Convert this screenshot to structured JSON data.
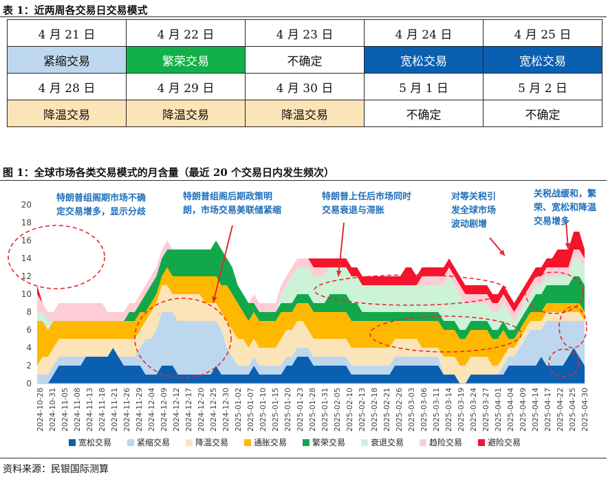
{
  "table": {
    "title": "表 1：近两周各交易日交易模式",
    "rows": [
      {
        "cells": [
          {
            "text": "4 月 21 日",
            "mode": "none"
          },
          {
            "text": "4 月 22 日",
            "mode": "none"
          },
          {
            "text": "4 月 23 日",
            "mode": "none"
          },
          {
            "text": "4 月 24 日",
            "mode": "none"
          },
          {
            "text": "4 月 25 日",
            "mode": "none"
          }
        ]
      },
      {
        "cells": [
          {
            "text": "紧缩交易",
            "mode": "tight"
          },
          {
            "text": "繁荣交易",
            "mode": "boom"
          },
          {
            "text": "不确定",
            "mode": "none"
          },
          {
            "text": "宽松交易",
            "mode": "loose"
          },
          {
            "text": "宽松交易",
            "mode": "loose"
          }
        ]
      },
      {
        "cells": [
          {
            "text": "4 月 28 日",
            "mode": "none"
          },
          {
            "text": "4 月 29 日",
            "mode": "none"
          },
          {
            "text": "4 月 30 日",
            "mode": "none"
          },
          {
            "text": "5 月 1 日",
            "mode": "none"
          },
          {
            "text": "5 月 2 日",
            "mode": "none"
          }
        ]
      },
      {
        "cells": [
          {
            "text": "降温交易",
            "mode": "cool"
          },
          {
            "text": "降温交易",
            "mode": "cool"
          },
          {
            "text": "降温交易",
            "mode": "cool"
          },
          {
            "text": "不确定",
            "mode": "none"
          },
          {
            "text": "不确定",
            "mode": "none"
          }
        ]
      }
    ]
  },
  "figure_title": "图 1：全球市场各类交易模式的月含量（最近 20 个交易日内发生频次）",
  "source": "资料来源：民银国际测算",
  "colors": {
    "宽松交易": "#0a5fb0",
    "紧缩交易": "#bdd7ee",
    "降温交易": "#fbe4b8",
    "通胀交易": "#ffb800",
    "繁荣交易": "#12a84a",
    "衰退交易": "#ccf2d8",
    "趋险交易": "#fccdd6",
    "避险交易": "#f4142c",
    "annotation": "#1f6fb8",
    "circle": "#e8262e"
  },
  "chart_data": {
    "type": "area",
    "stacked": true,
    "ylim": [
      0,
      20
    ],
    "yticks": [
      0,
      2,
      4,
      6,
      8,
      10,
      12,
      14,
      16,
      18,
      20
    ],
    "grid": false,
    "legend_position": "bottom",
    "x_tick_labels": [
      "2024-10-28",
      "2024-10-31",
      "2024-11-05",
      "2024-11-08",
      "2024-11-13",
      "2024-11-18",
      "2024-11-21",
      "2024-11-26",
      "2024-11-29",
      "2024-12-04",
      "2024-12-09",
      "2024-12-12",
      "2024-12-17",
      "2024-12-20",
      "2024-12-25",
      "2024-12-30",
      "2025-01-02",
      "2025-01-07",
      "2025-01-10",
      "2025-01-15",
      "2025-01-20",
      "2025-01-23",
      "2025-01-28",
      "2025-01-31",
      "2025-02-05",
      "2025-02-10",
      "2025-02-13",
      "2025-02-18",
      "2025-02-21",
      "2025-02-26",
      "2025-03-03",
      "2025-03-06",
      "2025-03-11",
      "2025-03-14",
      "2025-03-19",
      "2025-03-24",
      "2025-03-27",
      "2025-04-01",
      "2025-04-04",
      "2025-04-09",
      "2025-04-14",
      "2025-04-17",
      "2025-04-22",
      "2025-04-25",
      "2025-04-30"
    ],
    "series": [
      {
        "name": "宽松交易",
        "values": [
          0,
          0,
          0,
          1,
          2,
          2,
          2,
          2,
          2,
          3,
          3,
          3,
          3,
          3,
          4,
          3,
          2,
          2,
          2,
          2,
          1,
          1,
          1,
          2,
          2,
          2,
          1,
          1,
          1,
          1,
          1,
          1,
          1,
          2,
          1,
          1,
          1,
          1,
          1,
          1,
          2,
          1,
          1,
          1,
          1,
          1,
          2,
          2,
          3,
          3,
          3,
          2,
          2,
          2,
          2,
          2,
          2,
          2,
          1,
          1,
          1,
          1,
          1,
          1,
          1,
          1,
          2,
          2,
          2,
          2,
          2,
          2,
          2,
          2,
          2,
          1,
          1,
          1,
          0,
          0,
          1,
          1,
          1,
          1,
          1,
          1,
          1,
          2,
          2,
          2,
          2,
          2,
          2,
          3,
          2,
          2,
          2,
          2,
          3,
          4,
          3,
          2
        ]
      },
      {
        "name": "紧缩交易",
        "values": [
          1,
          1,
          1,
          1,
          1,
          1,
          1,
          1,
          1,
          0,
          0,
          0,
          0,
          0,
          0,
          0,
          1,
          1,
          1,
          2,
          4,
          4,
          5,
          6,
          6,
          6,
          6,
          6,
          6,
          6,
          6,
          6,
          6,
          5,
          5,
          3,
          2,
          1,
          1,
          1,
          1,
          1,
          1,
          1,
          1,
          1,
          1,
          1,
          1,
          1,
          1,
          1,
          1,
          1,
          1,
          1,
          1,
          1,
          1,
          1,
          1,
          1,
          1,
          1,
          1,
          1,
          1,
          1,
          1,
          1,
          1,
          1,
          1,
          1,
          1,
          0,
          0,
          0,
          0,
          0,
          0,
          0,
          0,
          0,
          0,
          0,
          1,
          1,
          1,
          2,
          3,
          4,
          4,
          3,
          5,
          5,
          5,
          5,
          4,
          3,
          4,
          5
        ]
      },
      {
        "name": "降温交易",
        "values": [
          1,
          2,
          2,
          2,
          2,
          2,
          2,
          2,
          2,
          2,
          2,
          2,
          2,
          2,
          1,
          2,
          2,
          2,
          2,
          2,
          2,
          3,
          3,
          3,
          3,
          2,
          3,
          3,
          3,
          3,
          3,
          2,
          2,
          2,
          2,
          3,
          3,
          3,
          3,
          2,
          2,
          2,
          2,
          2,
          2,
          3,
          3,
          3,
          3,
          3,
          2,
          2,
          2,
          2,
          2,
          2,
          2,
          2,
          2,
          2,
          2,
          2,
          2,
          2,
          2,
          2,
          2,
          2,
          2,
          2,
          2,
          1,
          1,
          1,
          1,
          2,
          2,
          2,
          2,
          2,
          2,
          2,
          2,
          2,
          1,
          1,
          1,
          1,
          1,
          1,
          1,
          1,
          1,
          1,
          1,
          1,
          1,
          1,
          1,
          1,
          1,
          0
        ]
      },
      {
        "name": "通胀交易",
        "values": [
          5,
          4,
          3,
          3,
          2,
          2,
          2,
          2,
          2,
          2,
          2,
          2,
          2,
          2,
          2,
          2,
          2,
          2,
          2,
          2,
          1,
          1,
          1,
          1,
          2,
          2,
          2,
          2,
          2,
          2,
          2,
          3,
          3,
          3,
          3,
          4,
          4,
          4,
          3,
          3,
          3,
          3,
          3,
          3,
          3,
          3,
          2,
          2,
          2,
          2,
          3,
          3,
          3,
          3,
          3,
          3,
          3,
          3,
          3,
          3,
          3,
          3,
          3,
          3,
          3,
          3,
          2,
          2,
          2,
          2,
          2,
          3,
          3,
          3,
          3,
          3,
          3,
          3,
          3,
          3,
          3,
          3,
          3,
          3,
          3,
          3,
          3,
          1,
          1,
          1,
          1,
          1,
          1,
          1,
          1,
          1,
          1,
          1,
          1,
          1,
          1,
          1
        ]
      },
      {
        "name": "繁荣交易",
        "values": [
          0,
          0,
          0,
          0,
          0,
          0,
          0,
          0,
          0,
          0,
          0,
          0,
          0,
          0,
          0,
          0,
          0,
          1,
          1,
          1,
          2,
          2,
          2,
          2,
          2,
          3,
          3,
          3,
          3,
          3,
          3,
          3,
          3,
          4,
          4,
          3,
          3,
          2,
          2,
          2,
          1,
          1,
          1,
          1,
          1,
          1,
          1,
          1,
          1,
          1,
          1,
          1,
          1,
          1,
          2,
          2,
          2,
          2,
          2,
          2,
          1,
          1,
          1,
          1,
          1,
          1,
          1,
          1,
          1,
          1,
          1,
          1,
          1,
          1,
          1,
          1,
          1,
          1,
          1,
          1,
          1,
          1,
          1,
          1,
          1,
          1,
          1,
          1,
          1,
          1,
          1,
          1,
          2,
          2,
          2,
          2,
          2,
          2,
          2,
          3,
          3,
          3
        ]
      },
      {
        "name": "衰退交易",
        "values": [
          1,
          1,
          1,
          0,
          0,
          0,
          0,
          0,
          0,
          0,
          0,
          0,
          0,
          0,
          0,
          0,
          0,
          0,
          0,
          0,
          0,
          0,
          0,
          0,
          0,
          0,
          0,
          0,
          0,
          0,
          0,
          0,
          0,
          0,
          0,
          0,
          0,
          0,
          0,
          0,
          0,
          0,
          0,
          0,
          0,
          1,
          2,
          3,
          3,
          3,
          3,
          3,
          3,
          3,
          3,
          3,
          3,
          3,
          3,
          3,
          3,
          3,
          3,
          3,
          3,
          3,
          3,
          3,
          3,
          3,
          3,
          3,
          3,
          3,
          3,
          4,
          5,
          4,
          4,
          3,
          2,
          2,
          2,
          2,
          2,
          2,
          2,
          2,
          1,
          1,
          1,
          1,
          1,
          1,
          1,
          1,
          1,
          1,
          1,
          2,
          2,
          2
        ]
      },
      {
        "name": "趋险交易",
        "values": [
          2,
          1,
          1,
          1,
          2,
          2,
          2,
          2,
          2,
          2,
          2,
          2,
          2,
          1,
          1,
          1,
          1,
          1,
          1,
          1,
          1,
          1,
          1,
          1,
          1,
          0,
          0,
          0,
          0,
          0,
          0,
          0,
          0,
          0,
          0,
          0,
          0,
          0,
          0,
          0,
          1,
          1,
          1,
          1,
          1,
          1,
          1,
          1,
          1,
          1,
          1,
          1,
          1,
          1,
          0,
          0,
          0,
          0,
          0,
          0,
          0,
          0,
          0,
          0,
          0,
          0,
          0,
          0,
          0,
          0,
          0,
          1,
          1,
          1,
          1,
          1,
          1,
          1,
          1,
          1,
          1,
          1,
          1,
          1,
          1,
          1,
          1,
          1,
          1,
          1,
          1,
          1,
          1,
          1,
          1,
          1,
          1,
          1,
          1,
          1,
          1,
          1
        ]
      },
      {
        "name": "避险交易",
        "values": [
          1,
          0,
          0,
          0,
          0,
          0,
          0,
          0,
          0,
          0,
          0,
          0,
          0,
          0,
          0,
          0,
          0,
          0,
          0,
          0,
          0,
          0,
          0,
          0,
          0,
          0,
          0,
          0,
          0,
          0,
          0,
          0,
          0,
          0,
          0,
          0,
          0,
          0,
          0,
          0,
          0,
          0,
          0,
          0,
          0,
          0,
          0,
          0,
          0,
          0,
          0,
          1,
          1,
          1,
          1,
          1,
          1,
          1,
          1,
          1,
          1,
          1,
          1,
          1,
          1,
          1,
          1,
          1,
          2,
          2,
          1,
          1,
          1,
          1,
          1,
          1,
          1,
          1,
          1,
          1,
          1,
          1,
          1,
          1,
          1,
          1,
          1,
          1,
          1,
          1,
          1,
          1,
          1,
          1,
          1,
          1,
          2,
          2,
          2,
          2,
          2,
          1
        ]
      }
    ],
    "annotations": [
      "特朗普组阁期市场不确定交易增多，显示分歧",
      "特朗普组阁后期政策明朗，市场交易美联储紧缩",
      "特朗普上任后市场同时交易衰退与滞胀",
      "对等关税引发全球市场波动剧增",
      "关税战缓和，繁荣、宽松和降温交易增多"
    ]
  }
}
